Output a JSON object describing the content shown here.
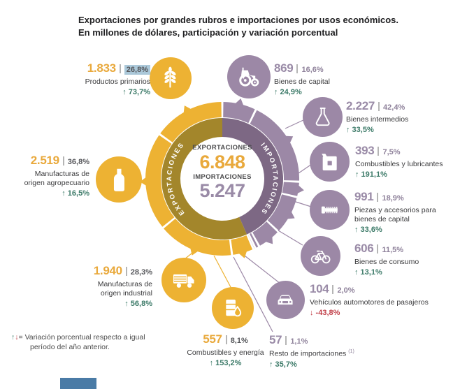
{
  "title": {
    "line1": "Exportaciones por grandes rubros e importaciones por usos económicos.",
    "line2": "En millones de dólares, participación y variación porcentual"
  },
  "donut_center": {
    "exports_label": "EXPORTACIONES",
    "exports_value": "6.848",
    "imports_label": "IMPORTACIONES",
    "imports_value": "5.247"
  },
  "ring_labels": {
    "exports": "EXPORTACIONES",
    "imports": "IMPORTACIONES"
  },
  "exports": {
    "items": [
      {
        "value": "1.833",
        "share": "26,8%",
        "label": "Productos primarios",
        "change": "↑ 73,7%",
        "direction": "up",
        "icon": "wheat-icon",
        "share_highlighted": true
      },
      {
        "value": "2.519",
        "share": "36,8%",
        "label": "Manufacturas de origen agropecuario",
        "change": "↑ 16,5%",
        "direction": "up",
        "icon": "bottle-icon"
      },
      {
        "value": "1.940",
        "share": "28,3%",
        "label": "Manufacturas de origen industrial",
        "change": "↑ 56,8%",
        "direction": "up",
        "icon": "truck-icon"
      },
      {
        "value": "557",
        "share": "8,1%",
        "label": "Combustibles y energía",
        "change": "↑ 153,2%",
        "direction": "up",
        "icon": "oil-barrel-icon"
      }
    ]
  },
  "imports": {
    "items": [
      {
        "value": "869",
        "share": "16,6%",
        "label": "Bienes de capital",
        "change": "↑ 24,9%",
        "direction": "up",
        "icon": "tractor-icon"
      },
      {
        "value": "2.227",
        "share": "42,4%",
        "label": "Bienes intermedios",
        "change": "↑ 33,5%",
        "direction": "up",
        "icon": "flask-icon"
      },
      {
        "value": "393",
        "share": "7,5%",
        "label": "Combustibles y lubricantes",
        "change": "↑ 191,1%",
        "direction": "up",
        "icon": "jerrycan-icon"
      },
      {
        "value": "991",
        "share": "18,9%",
        "label": "Piezas y accesorios para bienes de capital",
        "change": "↑ 33,6%",
        "direction": "up",
        "icon": "screw-icon"
      },
      {
        "value": "606",
        "share": "11,5%",
        "label": "Bienes de consumo",
        "change": "↑ 13,1%",
        "direction": "up",
        "icon": "bicycle-icon"
      },
      {
        "value": "104",
        "share": "2,0%",
        "label": "Vehículos automotores de pasajeros",
        "change": "↓ -43,8%",
        "direction": "down",
        "icon": "car-icon"
      },
      {
        "value": "57",
        "share": "1,1%",
        "label": "Resto de importaciones",
        "note": "(1)",
        "change": "↑ 35,7%",
        "direction": "up"
      }
    ]
  },
  "footnote": {
    "up": "↑",
    "down": "↓",
    "equals": "=",
    "text": "Variación porcentual respecto a igual período del año anterior."
  },
  "colors": {
    "export_main": "#EDB233",
    "export_inner": "#A3862B",
    "import_main": "#9C88A6",
    "import_inner": "#7D6884",
    "export_number": "#E9A93C",
    "import_number": "#9A8BA7",
    "up_green": "#3C7A68",
    "down_red": "#C13F48",
    "share_highlight": "#ABC8D9"
  },
  "chart_data": {
    "type": "pie",
    "subtype": "double-ring-donut",
    "title": "Exportaciones por grandes rubros e importaciones por usos económicos. En millones de dólares, participación y variación porcentual",
    "unit": "millones de dólares",
    "center_totals": {
      "exportaciones": 6848,
      "importaciones": 5247
    },
    "series": [
      {
        "name": "EXPORTACIONES",
        "total": 6848,
        "color": "#EDB233",
        "inner_color": "#A3862B",
        "segments": [
          {
            "label": "Productos primarios",
            "value": 1833,
            "share_pct": 26.8,
            "change_pct": 73.7
          },
          {
            "label": "Manufacturas de origen agropecuario",
            "value": 2519,
            "share_pct": 36.8,
            "change_pct": 16.5
          },
          {
            "label": "Manufacturas de origen industrial",
            "value": 1940,
            "share_pct": 28.3,
            "change_pct": 56.8
          },
          {
            "label": "Combustibles y energía",
            "value": 557,
            "share_pct": 8.1,
            "change_pct": 153.2
          }
        ]
      },
      {
        "name": "IMPORTACIONES",
        "total": 5247,
        "color": "#9C88A6",
        "inner_color": "#7D6884",
        "segments": [
          {
            "label": "Bienes de capital",
            "value": 869,
            "share_pct": 16.6,
            "change_pct": 24.9
          },
          {
            "label": "Bienes intermedios",
            "value": 2227,
            "share_pct": 42.4,
            "change_pct": 33.5
          },
          {
            "label": "Combustibles y lubricantes",
            "value": 393,
            "share_pct": 7.5,
            "change_pct": 191.1
          },
          {
            "label": "Piezas y accesorios para bienes de capital",
            "value": 991,
            "share_pct": 18.9,
            "change_pct": 33.6
          },
          {
            "label": "Bienes de consumo",
            "value": 606,
            "share_pct": 11.5,
            "change_pct": 13.1
          },
          {
            "label": "Vehículos automotores de pasajeros",
            "value": 104,
            "share_pct": 2.0,
            "change_pct": -43.8
          },
          {
            "label": "Resto de importaciones",
            "value": 57,
            "share_pct": 1.1,
            "change_pct": 35.7
          }
        ]
      }
    ]
  }
}
